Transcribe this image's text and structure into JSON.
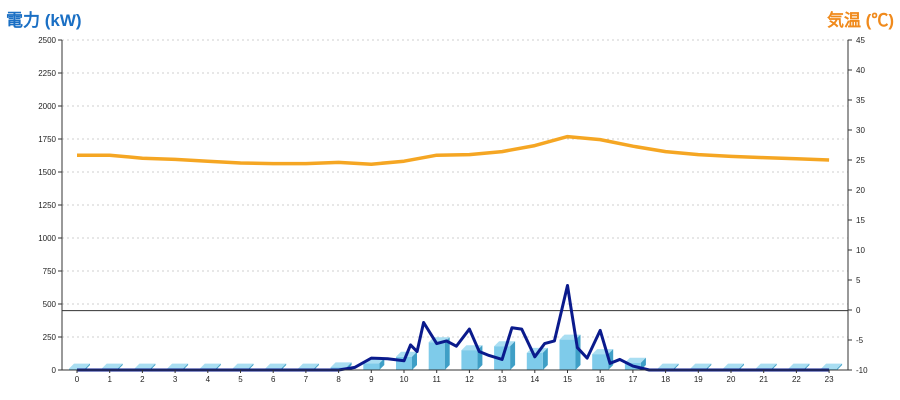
{
  "chart_data": {
    "type": "bar+line",
    "left_axis_title": "電力 (kW)",
    "right_axis_title": "気温 (℃)",
    "colors": {
      "left_title": "#1a6fc4",
      "right_title": "#f08a1c",
      "bars": "#7ecbea",
      "power_line": "#0a1a8c",
      "temp_line": "#f5a623",
      "grid": "#cfcfcf"
    },
    "y_left": {
      "min": 0,
      "max": 2500,
      "ticks": [
        "0",
        "250",
        "500",
        "750",
        "1000",
        "1250",
        "1500",
        "1750",
        "2000",
        "2250",
        "2500"
      ]
    },
    "y_right": {
      "min": -10,
      "max": 45,
      "ticks": [
        "-10",
        "-5",
        "0",
        "5",
        "10",
        "15",
        "20",
        "25",
        "30",
        "35",
        "40",
        "45"
      ]
    },
    "x_ticks": [
      "0",
      "1",
      "2",
      "3",
      "4",
      "5",
      "6",
      "7",
      "8",
      "9",
      "10",
      "11",
      "12",
      "13",
      "14",
      "15",
      "16",
      "17",
      "18",
      "19",
      "20",
      "21",
      "22",
      "23"
    ],
    "reference_line_value": 450,
    "grid": true,
    "bars": {
      "categories": [
        "0",
        "1",
        "2",
        "3",
        "4",
        "5",
        "6",
        "7",
        "8",
        "9",
        "10",
        "11",
        "12",
        "13",
        "14",
        "15",
        "16",
        "17",
        "18",
        "19",
        "20",
        "21",
        "22",
        "23"
      ],
      "values": [
        10,
        10,
        10,
        10,
        10,
        10,
        10,
        10,
        20,
        50,
        100,
        210,
        150,
        180,
        130,
        230,
        120,
        55,
        10,
        10,
        10,
        10,
        10,
        10
      ]
    },
    "power_line": {
      "x": [
        0,
        1,
        2,
        3,
        4,
        5,
        6,
        7,
        8,
        8.5,
        9,
        9.5,
        10,
        10.2,
        10.4,
        10.6,
        11,
        11.3,
        11.6,
        12,
        12.3,
        12.6,
        13,
        13.3,
        13.6,
        14,
        14.3,
        14.6,
        15,
        15.1,
        15.3,
        15.6,
        16,
        16.3,
        16.6,
        17,
        17.5,
        18,
        19,
        20,
        21,
        22,
        23
      ],
      "y": [
        0,
        0,
        0,
        0,
        0,
        0,
        0,
        0,
        0,
        20,
        90,
        85,
        70,
        190,
        140,
        360,
        200,
        220,
        180,
        310,
        140,
        110,
        80,
        320,
        310,
        100,
        200,
        220,
        640,
        480,
        170,
        90,
        300,
        50,
        80,
        30,
        0,
        0,
        0,
        0,
        0,
        0,
        0
      ]
    },
    "temperature_line": {
      "x": [
        0,
        1,
        2,
        3,
        4,
        5,
        6,
        7,
        8,
        9,
        10,
        11,
        12,
        13,
        14,
        15,
        16,
        17,
        18,
        19,
        20,
        21,
        22,
        23
      ],
      "y": [
        25.8,
        25.8,
        25.3,
        25.1,
        24.8,
        24.5,
        24.4,
        24.4,
        24.6,
        24.3,
        24.8,
        25.8,
        25.9,
        26.4,
        27.4,
        28.9,
        28.4,
        27.3,
        26.4,
        25.9,
        25.6,
        25.4,
        25.2,
        25.0
      ]
    }
  }
}
